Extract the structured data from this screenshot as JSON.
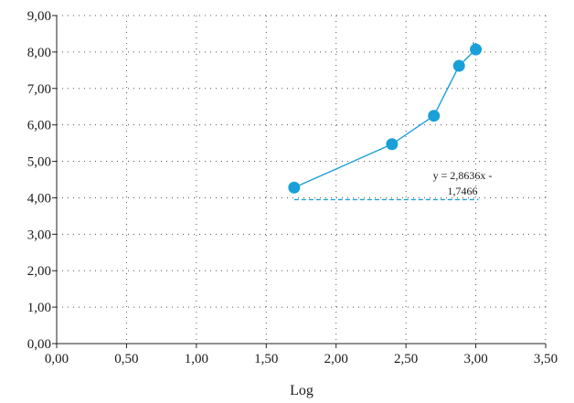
{
  "chart_data": {
    "type": "scatter",
    "xlabel": "Log",
    "ylabel": "",
    "xlim": [
      0,
      3.5
    ],
    "ylim": [
      0,
      9
    ],
    "x_ticks": [
      "0,00",
      "0,50",
      "1,00",
      "1,50",
      "2,00",
      "2,50",
      "3,00",
      "3,50"
    ],
    "y_ticks": [
      "0,00",
      "1,00",
      "2,00",
      "3,00",
      "4,00",
      "5,00",
      "6,00",
      "7,00",
      "8,00",
      "9,00"
    ],
    "grid": true,
    "series": [
      {
        "x": [
          1.7,
          2.4,
          2.7,
          2.88,
          3.0
        ],
        "y": [
          4.28,
          5.47,
          6.25,
          7.62,
          8.07
        ],
        "color": "#1aa0d8",
        "connected": true
      }
    ],
    "trendline": {
      "label_line1": "y = 2,8636x -",
      "label_line2": "1,7466",
      "x_range": [
        1.7,
        3.0
      ],
      "color": "#1aa0d8",
      "style": "dashed"
    }
  }
}
